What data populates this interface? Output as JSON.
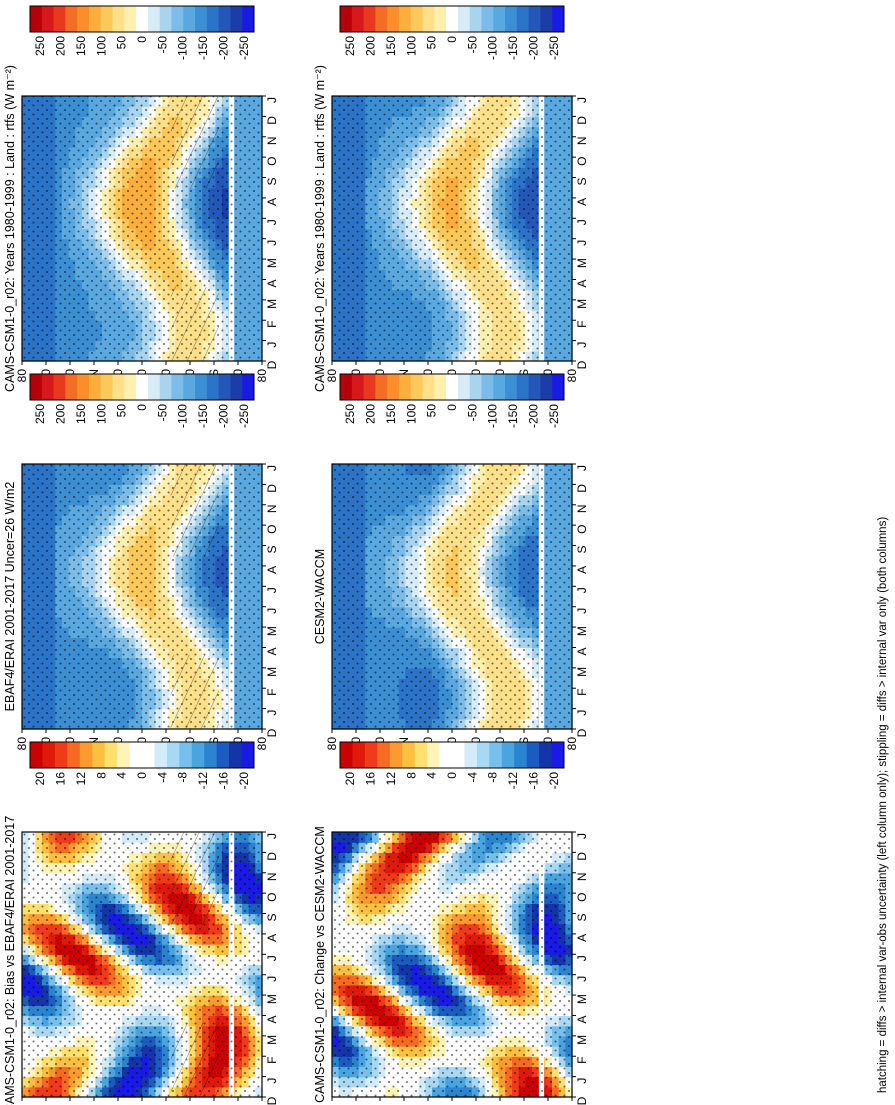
{
  "footnote": "hatching = diffs > internal var-obs uncertainty (left column only); stippling = diffs > internal var only (both columns)",
  "month_ticks": [
    "D",
    "J",
    "F",
    "M",
    "A",
    "M",
    "J",
    "J",
    "A",
    "S",
    "O",
    "N",
    "D",
    "J"
  ],
  "lat_ticks": [
    "80",
    "60",
    "40",
    "°N",
    "20",
    "0",
    "20",
    "40",
    "°S",
    "60",
    "80"
  ],
  "colors": {
    "full": [
      "#b8000b",
      "#d7191c",
      "#e8391f",
      "#f46d24",
      "#f98e2b",
      "#fcae3c",
      "#fdc85a",
      "#fee08b",
      "#fff0b0",
      "#ffffff",
      "#d8ecf8",
      "#a8d4f0",
      "#7bbde8",
      "#5aa8e0",
      "#3d8fd4",
      "#2b74c8",
      "#2458b8",
      "#1c3ca8",
      "#1a1ae6"
    ],
    "diff": [
      "#cc0000",
      "#e01a0a",
      "#f03a1a",
      "#f76a22",
      "#fb9a2e",
      "#fcc040",
      "#fde070",
      "#fff4b8",
      "#ffffff",
      "#ffffff",
      "#d4ecfa",
      "#a8d8f4",
      "#78c0ec",
      "#4aa4e0",
      "#2a84d0",
      "#1c5cc0",
      "#1434a8",
      "#1a1ae6"
    ]
  },
  "chart_data": [
    {
      "type": "heatmap",
      "title": "CAMS-CSM1-0_r02: Years 1980-1999 : Land : rtfs (W m⁻²)",
      "colorbar_labels": [
        "250",
        "200",
        "150",
        "100",
        "50",
        "0",
        "-50",
        "-100",
        "-150",
        "-200",
        "-250"
      ],
      "x": "month",
      "y": "latitude",
      "range": [
        -280,
        280
      ]
    },
    {
      "type": "heatmap",
      "title": "CAMS-CSM1-0_r02: Years 1980-1999 : Land : rtfs (W m⁻²)",
      "colorbar_labels": [
        "250",
        "200",
        "150",
        "100",
        "50",
        "0",
        "-50",
        "-100",
        "-150",
        "-200",
        "-250"
      ],
      "x": "month",
      "y": "latitude",
      "range": [
        -280,
        280
      ]
    },
    {
      "type": "heatmap",
      "title": "EBAF4/ERAI 2001-2017 Uncer=26 W/m2",
      "colorbar_labels": [
        "250",
        "200",
        "150",
        "100",
        "50",
        "0",
        "-50",
        "-100",
        "-150",
        "-200",
        "-250"
      ],
      "x": "month",
      "y": "latitude",
      "range": [
        -280,
        280
      ]
    },
    {
      "type": "heatmap",
      "title": "CESM2-WACCM",
      "colorbar_labels": [
        "250",
        "200",
        "150",
        "100",
        "50",
        "0",
        "-50",
        "-100",
        "-150",
        "-200",
        "-250"
      ],
      "x": "month",
      "y": "latitude",
      "range": [
        -280,
        280
      ]
    },
    {
      "type": "heatmap",
      "title": "CAMS-CSM1-0_r02: Bias vs EBAF4/ERAI 2001-2017",
      "colorbar_labels": [
        "20",
        "16",
        "12",
        "8",
        "4",
        "0",
        "-4",
        "-8",
        "-12",
        "-16",
        "-20"
      ],
      "x": "month",
      "y": "latitude",
      "range": [
        -22,
        22
      ]
    },
    {
      "type": "heatmap",
      "title": "CAMS-CSM1-0_r02: Change vs CESM2-WACCM",
      "colorbar_labels": [
        "20",
        "16",
        "12",
        "8",
        "4",
        "0",
        "-4",
        "-8",
        "-12",
        "-16",
        "-20"
      ],
      "x": "month",
      "y": "latitude",
      "range": [
        -22,
        22
      ]
    }
  ]
}
